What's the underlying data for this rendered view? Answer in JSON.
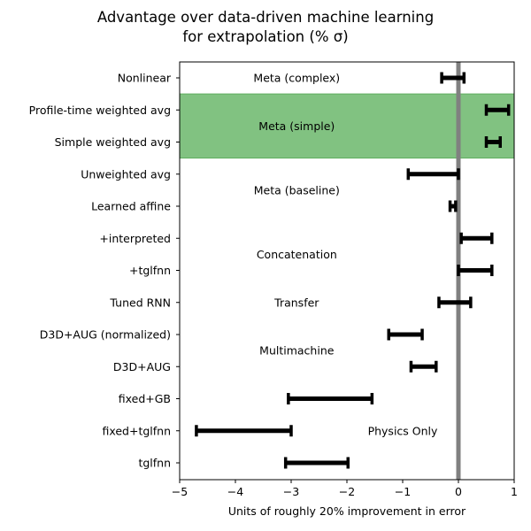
{
  "chart_data": {
    "type": "errorbar",
    "title_lines": [
      "Advantage over data-driven machine learning",
      "for extrapolation (% σ)"
    ],
    "xlabel": "Units of roughly 20% improvement in error",
    "xlim": [
      -5,
      1
    ],
    "x_ticks": [
      -5,
      -4,
      -3,
      -2,
      -1,
      0,
      1
    ],
    "x_tick_labels": [
      "−5",
      "−4",
      "−3",
      "−2",
      "−1",
      "0",
      "1"
    ],
    "reference_line_x": 0,
    "reference_line_color": "#808080",
    "highlight_band": {
      "from_category": "Profile-time weighted avg",
      "to_category": "Simple weighted avg",
      "color": "#81c281"
    },
    "bar_color": "#000000",
    "categories": [
      "Nonlinear",
      "Profile-time weighted avg",
      "Simple weighted avg",
      "Unweighted avg",
      "Learned affine",
      "+interpreted",
      "+tglfnn",
      "Tuned RNN",
      "D3D+AUG (normalized)",
      "D3D+AUG",
      "fixed+GB",
      "fixed+tglfnn",
      "tglfnn"
    ],
    "intervals": [
      [
        -0.3,
        0.1
      ],
      [
        0.5,
        0.9
      ],
      [
        0.5,
        0.75
      ],
      [
        -0.9,
        0.0
      ],
      [
        -0.15,
        -0.05
      ],
      [
        0.05,
        0.6
      ],
      [
        0.0,
        0.6
      ],
      [
        -0.35,
        0.22
      ],
      [
        -1.25,
        -0.65
      ],
      [
        -0.85,
        -0.4
      ],
      [
        -3.05,
        -1.55
      ],
      [
        -4.7,
        -3.0
      ],
      [
        -3.1,
        -1.98
      ]
    ],
    "group_labels": [
      {
        "text": "Meta (complex)",
        "x": -2.9,
        "row": 0
      },
      {
        "text": "Meta (simple)",
        "x": -2.9,
        "row": 1.5
      },
      {
        "text": "Meta (baseline)",
        "x": -2.9,
        "row": 3.5
      },
      {
        "text": "Concatenation",
        "x": -2.9,
        "row": 5.5
      },
      {
        "text": "Transfer",
        "x": -2.9,
        "row": 7
      },
      {
        "text": "Multimachine",
        "x": -2.9,
        "row": 8.5
      },
      {
        "text": "Physics Only",
        "x": -1.0,
        "row": 11
      }
    ]
  }
}
